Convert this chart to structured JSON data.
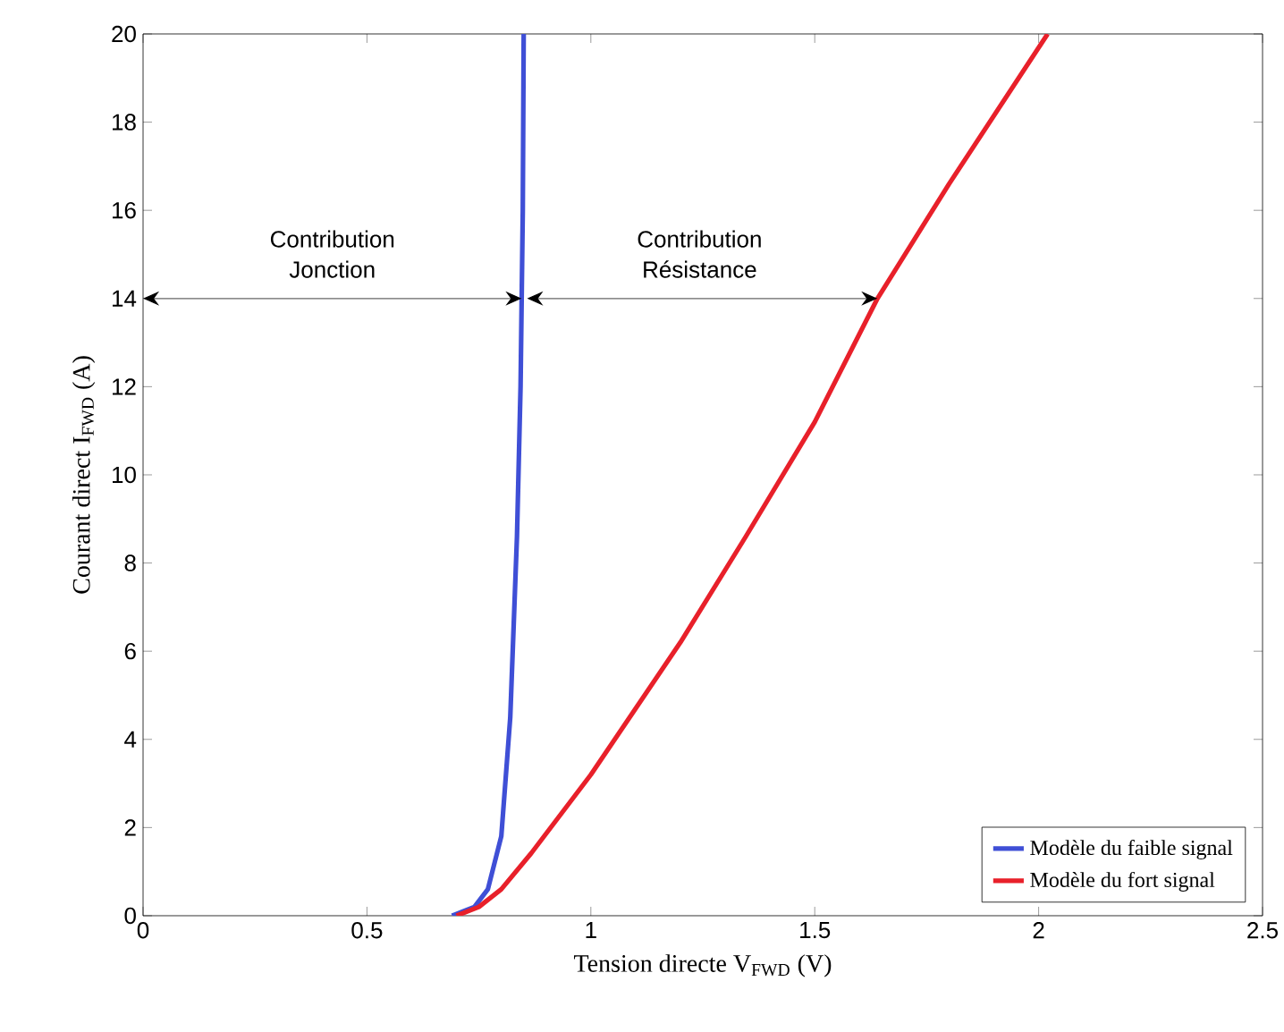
{
  "chart_data": {
    "type": "line",
    "xlabel": "Tension directe  V$_{FWD}$ (V)",
    "ylabel": "Courant direct  I$_{FWD}$ (A)",
    "xlim": [
      0,
      2.5
    ],
    "ylim": [
      0,
      20
    ],
    "xticks": [
      0,
      0.5,
      1,
      1.5,
      2,
      2.5
    ],
    "yticks": [
      0,
      2,
      4,
      6,
      8,
      10,
      12,
      14,
      16,
      18,
      20
    ],
    "grid": false,
    "legend": "bottom right",
    "series": [
      {
        "name": "Modèle du faible signal",
        "color": "#3f4fd6",
        "x": [
          0.69,
          0.74,
          0.77,
          0.8,
          0.82,
          0.835,
          0.843,
          0.848,
          0.85
        ],
        "values": [
          0,
          0.2,
          0.6,
          1.8,
          4.5,
          8.6,
          12,
          16,
          20
        ]
      },
      {
        "name": "Modèle du fort signal",
        "color": "#e8202a",
        "x": [
          0.7,
          0.75,
          0.8,
          0.867,
          1.0,
          1.2,
          1.346,
          1.5,
          1.64,
          1.8,
          2.02
        ],
        "values": [
          0,
          0.2,
          0.6,
          1.42,
          3.2,
          6.2,
          8.6,
          11.2,
          14,
          16.6,
          20
        ]
      }
    ],
    "annotations": [
      "Contribution Jonction",
      "Contribution Résistance"
    ]
  }
}
